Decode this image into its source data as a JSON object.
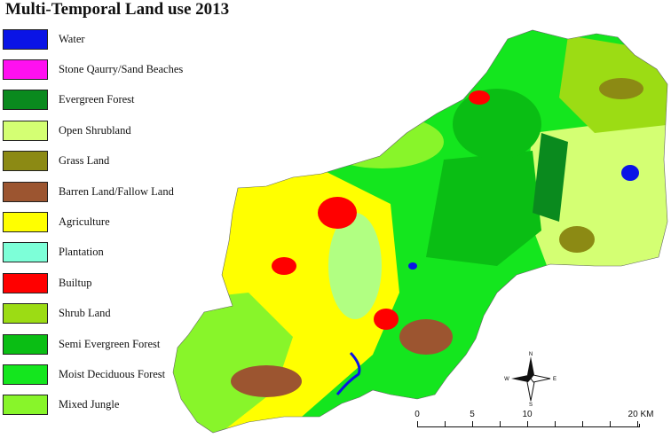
{
  "title": "Multi-Temporal Land use 2013",
  "legend": [
    {
      "label": "Water",
      "color": "#0a14e6"
    },
    {
      "label": "Stone Qaurry/Sand Beaches",
      "color": "#ff10f0"
    },
    {
      "label": "Evergreen Forest",
      "color": "#0a8a1e"
    },
    {
      "label": "Open Shrubland",
      "color": "#d4ff73"
    },
    {
      "label": "Grass Land",
      "color": "#8c8a14"
    },
    {
      "label": "Barren Land/Fallow Land",
      "color": "#9c5530"
    },
    {
      "label": "Agriculture",
      "color": "#ffff00"
    },
    {
      "label": "Plantation",
      "color": "#7dffd8"
    },
    {
      "label": "Builtup",
      "color": "#ff0000"
    },
    {
      "label": "Shrub Land",
      "color": "#9cdc14"
    },
    {
      "label": "Semi Evergreen Forest",
      "color": "#0abe14"
    },
    {
      "label": "Moist Deciduous Forest",
      "color": "#14e61e"
    },
    {
      "label": "Mixed Jungle",
      "color": "#88f52a"
    }
  ],
  "compass": {
    "n": "N",
    "s": "S",
    "e": "E",
    "w": "W"
  },
  "scale": {
    "ticks": [
      "0",
      "5",
      "10",
      "20 KM"
    ]
  }
}
